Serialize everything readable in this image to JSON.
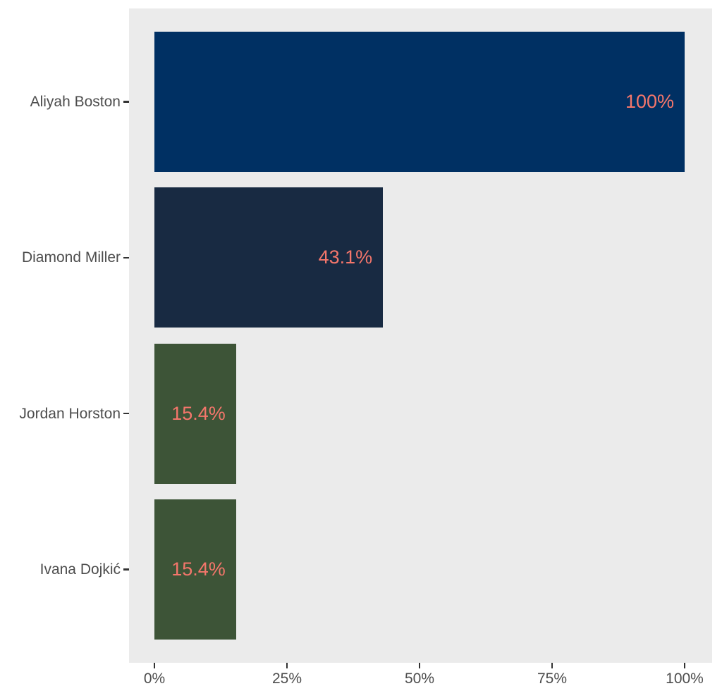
{
  "chart_data": {
    "type": "bar",
    "orientation": "horizontal",
    "title": "",
    "xlabel": "",
    "ylabel": "",
    "categories": [
      "Aliyah Boston",
      "Diamond Miller",
      "Jordan Horston",
      "Ivana Dojkić"
    ],
    "values": [
      100,
      43.1,
      15.4,
      15.4
    ],
    "value_labels": [
      "100%",
      "43.1%",
      "15.4%",
      "15.4%"
    ],
    "bar_colors": [
      "#003063",
      "#182A42",
      "#3D5437",
      "#3D5437"
    ],
    "x_ticks": [
      {
        "value": 0,
        "label": "0%"
      },
      {
        "value": 25,
        "label": "25%"
      },
      {
        "value": 50,
        "label": "50%"
      },
      {
        "value": 75,
        "label": "75%"
      },
      {
        "value": 100,
        "label": "100%"
      }
    ],
    "xlim": [
      0,
      100
    ],
    "grid": false,
    "legend": "none",
    "colors": {
      "panel_background": "#EBEBEB",
      "outer_background": "#FFFFFF",
      "value_label_color": "#F4766B",
      "axis_text_color": "#4D4D4D",
      "tick_mark_color": "#333333"
    }
  }
}
